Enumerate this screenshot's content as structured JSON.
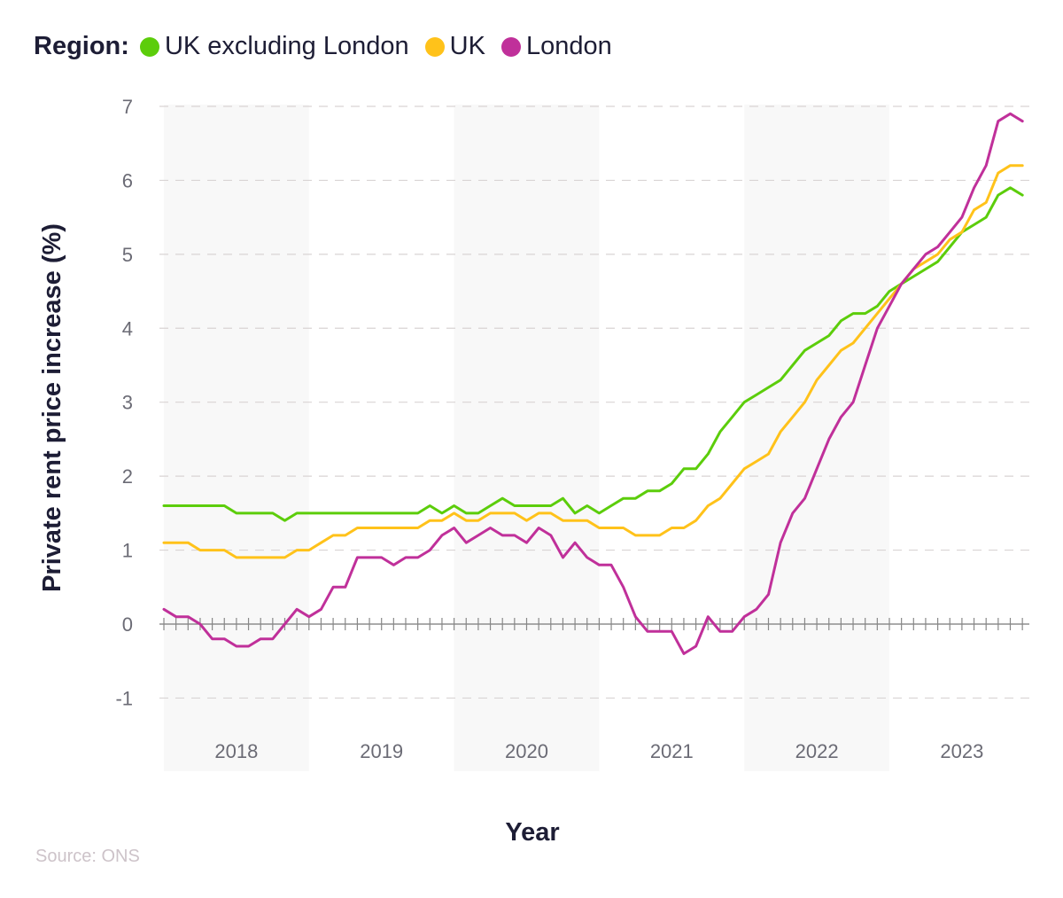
{
  "legend": {
    "title": "Region:"
  },
  "source": "Source: ONS",
  "chart_data": {
    "type": "line",
    "title": "",
    "xlabel": "Year",
    "ylabel": "Private rent price increase (%)",
    "ylim": [
      -1,
      7
    ],
    "yticks": [
      "-1",
      "0",
      "1",
      "2",
      "3",
      "4",
      "5",
      "6",
      "7"
    ],
    "x_start": "2018-01",
    "x_frequency": "monthly",
    "year_labels": [
      "2018",
      "2019",
      "2020",
      "2021",
      "2022",
      "2023"
    ],
    "grid": true,
    "legend_position": "top-left",
    "series": [
      {
        "name": "UK excluding London",
        "color": "#5ccd0b",
        "values": [
          1.6,
          1.6,
          1.6,
          1.6,
          1.6,
          1.6,
          1.5,
          1.5,
          1.5,
          1.5,
          1.4,
          1.5,
          1.5,
          1.5,
          1.5,
          1.5,
          1.5,
          1.5,
          1.5,
          1.5,
          1.5,
          1.5,
          1.6,
          1.5,
          1.6,
          1.5,
          1.5,
          1.6,
          1.7,
          1.6,
          1.6,
          1.6,
          1.6,
          1.7,
          1.5,
          1.6,
          1.5,
          1.6,
          1.7,
          1.7,
          1.8,
          1.8,
          1.9,
          2.1,
          2.1,
          2.3,
          2.6,
          2.8,
          3.0,
          3.1,
          3.2,
          3.3,
          3.5,
          3.7,
          3.8,
          3.9,
          4.1,
          4.2,
          4.2,
          4.3,
          4.5,
          4.6,
          4.7,
          4.8,
          4.9,
          5.1,
          5.3,
          5.4,
          5.5,
          5.8,
          5.9,
          5.8
        ]
      },
      {
        "name": "UK",
        "color": "#ffc21a",
        "values": [
          1.1,
          1.1,
          1.1,
          1.0,
          1.0,
          1.0,
          0.9,
          0.9,
          0.9,
          0.9,
          0.9,
          1.0,
          1.0,
          1.1,
          1.2,
          1.2,
          1.3,
          1.3,
          1.3,
          1.3,
          1.3,
          1.3,
          1.4,
          1.4,
          1.5,
          1.4,
          1.4,
          1.5,
          1.5,
          1.5,
          1.4,
          1.5,
          1.5,
          1.4,
          1.4,
          1.4,
          1.3,
          1.3,
          1.3,
          1.2,
          1.2,
          1.2,
          1.3,
          1.3,
          1.4,
          1.6,
          1.7,
          1.9,
          2.1,
          2.2,
          2.3,
          2.6,
          2.8,
          3.0,
          3.3,
          3.5,
          3.7,
          3.8,
          4.0,
          4.2,
          4.4,
          4.6,
          4.8,
          4.9,
          5.0,
          5.2,
          5.3,
          5.6,
          5.7,
          6.1,
          6.2,
          6.2
        ]
      },
      {
        "name": "London",
        "color": "#c0309a",
        "values": [
          0.2,
          0.1,
          0.1,
          0.0,
          -0.2,
          -0.2,
          -0.3,
          -0.3,
          -0.2,
          -0.2,
          0.0,
          0.2,
          0.1,
          0.2,
          0.5,
          0.5,
          0.9,
          0.9,
          0.9,
          0.8,
          0.9,
          0.9,
          1.0,
          1.2,
          1.3,
          1.1,
          1.2,
          1.3,
          1.2,
          1.2,
          1.1,
          1.3,
          1.2,
          0.9,
          1.1,
          0.9,
          0.8,
          0.8,
          0.5,
          0.1,
          -0.1,
          -0.1,
          -0.1,
          -0.4,
          -0.3,
          0.1,
          -0.1,
          -0.1,
          0.1,
          0.2,
          0.4,
          1.1,
          1.5,
          1.7,
          2.1,
          2.5,
          2.8,
          3.0,
          3.5,
          4.0,
          4.3,
          4.6,
          4.8,
          5.0,
          5.1,
          5.3,
          5.5,
          5.9,
          6.2,
          6.8,
          6.9,
          6.8
        ]
      }
    ]
  }
}
